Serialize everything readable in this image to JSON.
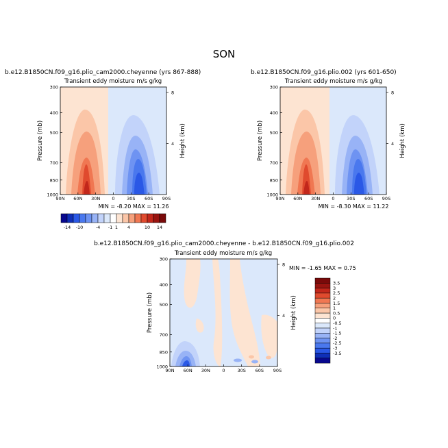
{
  "figure": {
    "title": "SON"
  },
  "colors": {
    "blues": [
      "#08088e",
      "#0f2fb8",
      "#2a58e6",
      "#4a78ee",
      "#6e93f2",
      "#98b3f6",
      "#c2d3fa",
      "#dbe8fb"
    ],
    "reds": [
      "#fde4d2",
      "#fbc6a8",
      "#f6a07c",
      "#f07752",
      "#e04a2e",
      "#c2271b",
      "#991410",
      "#7a0a0a"
    ],
    "zero": "#ffffff"
  },
  "chart_data": [
    {
      "type": "contour",
      "suptitle": "b.e12.B1850CN.f09_g16.plio_cam2000.cheyenne (yrs 867-888)",
      "title": "Transient eddy moisture m/s g/kg",
      "ylabel": "Pressure (mb)",
      "ylabel_right": "Height (km)",
      "x_ticks": [
        "90N",
        "60N",
        "30N",
        "0",
        "30S",
        "60S",
        "90S"
      ],
      "y_ticks": [
        "300",
        "400",
        "500",
        "700",
        "850",
        "1000"
      ],
      "y_ticks_right": [
        "8",
        "4"
      ],
      "ylim": [
        1000,
        300
      ],
      "min_max_text": "MIN =   -8.20    MAX =   11.26",
      "min": -8.2,
      "max": 11.26
    },
    {
      "type": "contour",
      "suptitle": "b.e12.B1850CN.f09_g16.plio.002 (yrs 601-650)",
      "title": "Transient eddy moisture m/s g/kg",
      "ylabel": "Pressure (mb)",
      "ylabel_right": "Height (km)",
      "x_ticks": [
        "90N",
        "60N",
        "30N",
        "0",
        "30S",
        "60S",
        "90S"
      ],
      "y_ticks": [
        "300",
        "400",
        "500",
        "700",
        "850",
        "1000"
      ],
      "y_ticks_right": [
        "8",
        "4"
      ],
      "ylim": [
        1000,
        300
      ],
      "min_max_text": "MIN =   -8.30    MAX =   11.22",
      "min": -8.3,
      "max": 11.22
    },
    {
      "type": "contour",
      "suptitle": "b.e12.B1850CN.f09_g16.plio_cam2000.cheyenne - b.e12.B1850CN.f09_g16.plio.002",
      "title": "Transient eddy moisture m/s g/kg",
      "ylabel": "Pressure (mb)",
      "ylabel_right": "Height (km)",
      "x_ticks": [
        "90N",
        "60N",
        "30N",
        "0",
        "30S",
        "60S",
        "90S"
      ],
      "y_ticks": [
        "300",
        "400",
        "500",
        "700",
        "850",
        "1000"
      ],
      "y_ticks_right": [
        "8",
        "4"
      ],
      "ylim": [
        1000,
        300
      ],
      "min_max_text": "MIN =   -1.65    MAX =   0.75",
      "min": -1.65,
      "max": 0.75
    }
  ],
  "colorbar_top": {
    "labels": [
      "-14",
      "-10",
      "-4",
      "-1",
      "1",
      "4",
      "10",
      "14"
    ]
  },
  "colorbar_diff": {
    "labels": [
      "3.5",
      "3",
      "2.5",
      "2",
      "1.5",
      "1",
      "0.5",
      "0",
      "-0.5",
      "-1",
      "-1.5",
      "-2",
      "-2.5",
      "-3",
      "-3.5"
    ]
  }
}
